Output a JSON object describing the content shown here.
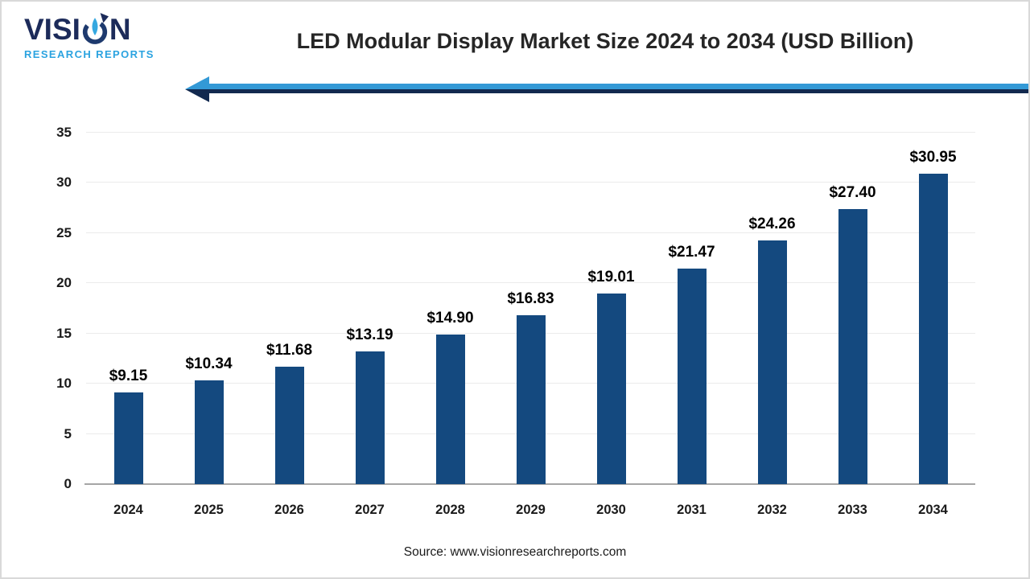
{
  "logo": {
    "brand_prefix": "VISI",
    "brand_suffix": "N",
    "subtitle": "RESEARCH REPORTS"
  },
  "header": {
    "title": "LED Modular Display Market Size 2024 to 2034 (USD Billion)"
  },
  "footer": {
    "source": "Source: www.visionresearchreports.com"
  },
  "colors": {
    "bar": "#14497f",
    "arrow_light": "#3399d6",
    "arrow_dark": "#12294f",
    "logo_navy": "#1c2b5a",
    "logo_blue": "#2ba3e0",
    "gridline": "#ebebeb",
    "axis": "#a6a6a6"
  },
  "chart_data": {
    "type": "bar",
    "title": "LED Modular Display Market Size 2024 to 2034 (USD Billion)",
    "xlabel": "",
    "ylabel": "",
    "categories": [
      "2024",
      "2025",
      "2026",
      "2027",
      "2028",
      "2029",
      "2030",
      "2031",
      "2032",
      "2033",
      "2034"
    ],
    "values": [
      9.15,
      10.34,
      11.68,
      13.19,
      14.9,
      16.83,
      19.01,
      21.47,
      24.26,
      27.4,
      30.95
    ],
    "value_labels": [
      "$9.15",
      "$10.34",
      "$11.68",
      "$13.19",
      "$14.90",
      "$16.83",
      "$19.01",
      "$21.47",
      "$24.26",
      "$27.40",
      "$30.95"
    ],
    "ylim": [
      0,
      35
    ],
    "ytick_step": 5,
    "yticks": [
      "0",
      "5",
      "10",
      "15",
      "20",
      "25",
      "30",
      "35"
    ],
    "grid": true,
    "legend": false,
    "bar_color": "#14497f"
  }
}
